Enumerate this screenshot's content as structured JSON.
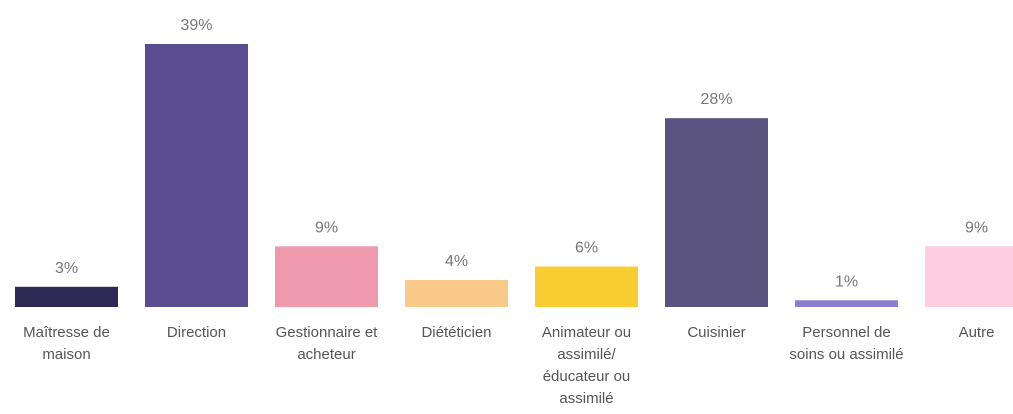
{
  "chart_data": {
    "type": "bar",
    "categories": [
      "Maîtresse de maison",
      "Direction",
      "Gestionnaire et acheteur",
      "Diététicien",
      "Animateur ou assimilé/ éducateur ou assimilé",
      "Cuisinier",
      "Personnel de soins ou assimilé",
      "Autre"
    ],
    "values": [
      3,
      39,
      9,
      4,
      6,
      28,
      1,
      9
    ],
    "value_labels": [
      "3%",
      "39%",
      "9%",
      "4%",
      "6%",
      "28%",
      "1%",
      "9%"
    ],
    "colors": [
      "#2e2a55",
      "#5a4d91",
      "#ee9aac",
      "#f9c98a",
      "#f9cd32",
      "#5c5480",
      "#8a7fcf",
      "#ffcce0"
    ]
  }
}
